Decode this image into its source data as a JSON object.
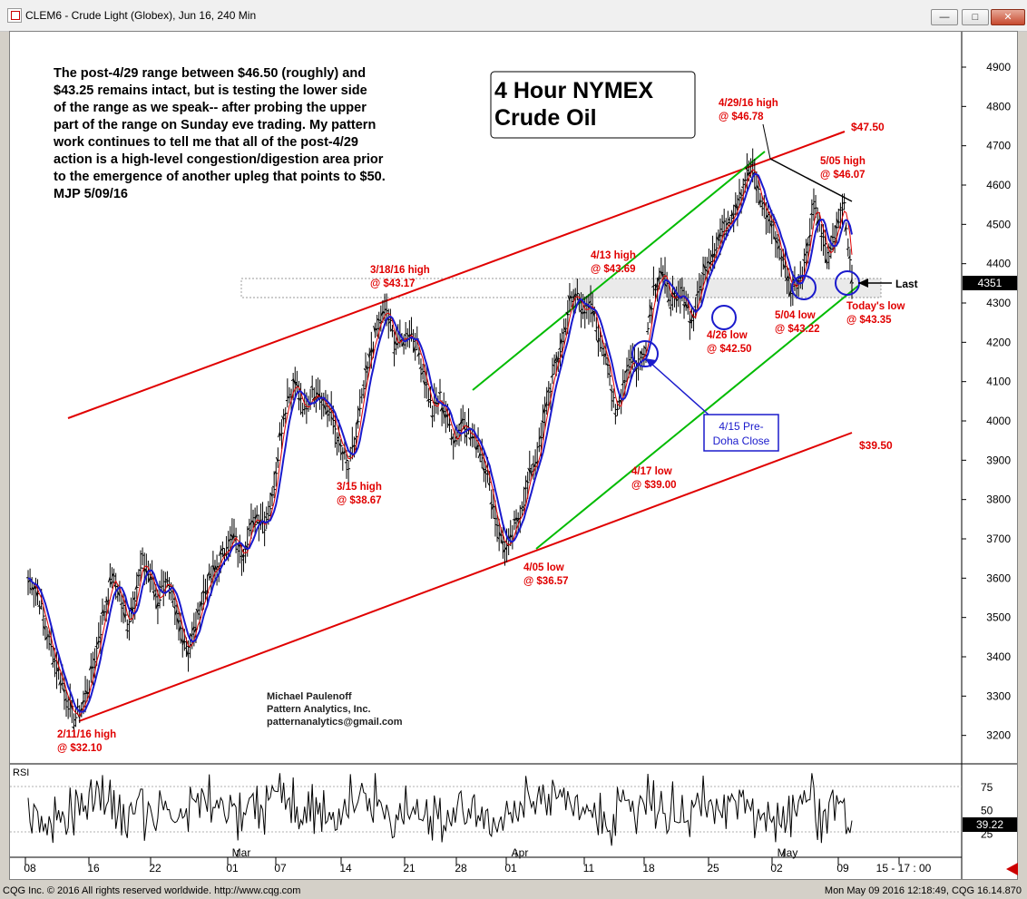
{
  "window": {
    "title": "CLEM6 - Crude Light (Globex), Jun 16, 240 Min",
    "minimize_label": "—",
    "maximize_label": "□",
    "close_label": "✕"
  },
  "status": {
    "left": "CQG Inc. © 2016 All rights reserved worldwide. http://www.cqg.com",
    "right": "Mon May 09 2016 12:18:49, CQG 16.14.870"
  },
  "chart_data": {
    "type": "line",
    "title": "4 Hour NYMEX Crude Oil",
    "title_lines": [
      "4 Hour NYMEX",
      "Crude Oil"
    ],
    "commentary": [
      "The post-4/29 range between $46.50 (roughly) and",
      "$43.25 remains intact, but is testing the lower side",
      "of the range as we speak-- after probing the upper",
      "part of the range on Sunday eve trading. My pattern",
      "work continues to tell me that all of the post-4/29",
      "action is a high-level congestion/digestion area prior",
      "to the emergence of another upleg that points to $50.",
      "MJP 5/09/16"
    ],
    "credits": [
      "Michael Paulenoff",
      "Pattern Analytics, Inc.",
      "patternanalytics@gmail.com"
    ],
    "y_ticks": [
      3200,
      3300,
      3400,
      3500,
      3600,
      3700,
      3800,
      3900,
      4000,
      4100,
      4200,
      4300,
      4400,
      4500,
      4600,
      4700,
      4800,
      4900
    ],
    "ylim": [
      3130,
      4990
    ],
    "last_price": "4351",
    "last_value": 4351,
    "last_label": "Last",
    "x_labels": [
      "08",
      "16",
      "22",
      "01",
      "07",
      "14",
      "21",
      "28",
      "01",
      "11",
      "18",
      "25",
      "02",
      "09",
      "15 - 17 : 00"
    ],
    "month_labels": [
      "Mar",
      "Apr",
      "May"
    ],
    "rsi": {
      "label": "RSI",
      "ticks": [
        75,
        50,
        25
      ],
      "value": "39.22",
      "current": 39.22
    },
    "price_series": [
      {
        "t": 0,
        "p": 3600
      },
      {
        "t": 1,
        "p": 3580
      },
      {
        "t": 2,
        "p": 3500
      },
      {
        "t": 3,
        "p": 3420
      },
      {
        "t": 4,
        "p": 3360
      },
      {
        "t": 5,
        "p": 3300
      },
      {
        "t": 6,
        "p": 3240
      },
      {
        "t": 7,
        "p": 3270
      },
      {
        "t": 8,
        "p": 3330
      },
      {
        "t": 9,
        "p": 3420
      },
      {
        "t": 10,
        "p": 3520
      },
      {
        "t": 11,
        "p": 3600
      },
      {
        "t": 12,
        "p": 3560
      },
      {
        "t": 13,
        "p": 3480
      },
      {
        "t": 14,
        "p": 3560
      },
      {
        "t": 15,
        "p": 3640
      },
      {
        "t": 16,
        "p": 3600
      },
      {
        "t": 17,
        "p": 3540
      },
      {
        "t": 18,
        "p": 3600
      },
      {
        "t": 19,
        "p": 3530
      },
      {
        "t": 20,
        "p": 3470
      },
      {
        "t": 21,
        "p": 3420
      },
      {
        "t": 22,
        "p": 3480
      },
      {
        "t": 23,
        "p": 3560
      },
      {
        "t": 24,
        "p": 3600
      },
      {
        "t": 25,
        "p": 3640
      },
      {
        "t": 26,
        "p": 3680
      },
      {
        "t": 27,
        "p": 3700
      },
      {
        "t": 28,
        "p": 3660
      },
      {
        "t": 29,
        "p": 3720
      },
      {
        "t": 30,
        "p": 3760
      },
      {
        "t": 31,
        "p": 3740
      },
      {
        "t": 32,
        "p": 3800
      },
      {
        "t": 33,
        "p": 3960
      },
      {
        "t": 34,
        "p": 4060
      },
      {
        "t": 35,
        "p": 4100
      },
      {
        "t": 36,
        "p": 4020
      },
      {
        "t": 37,
        "p": 4060
      },
      {
        "t": 38,
        "p": 4080
      },
      {
        "t": 39,
        "p": 4040
      },
      {
        "t": 40,
        "p": 4000
      },
      {
        "t": 41,
        "p": 3930
      },
      {
        "t": 42,
        "p": 3880
      },
      {
        "t": 43,
        "p": 3960
      },
      {
        "t": 44,
        "p": 4080
      },
      {
        "t": 45,
        "p": 4180
      },
      {
        "t": 46,
        "p": 4250
      },
      {
        "t": 47,
        "p": 4280
      },
      {
        "t": 48,
        "p": 4200
      },
      {
        "t": 49,
        "p": 4200
      },
      {
        "t": 50,
        "p": 4230
      },
      {
        "t": 51,
        "p": 4190
      },
      {
        "t": 52,
        "p": 4110
      },
      {
        "t": 53,
        "p": 4020
      },
      {
        "t": 54,
        "p": 4060
      },
      {
        "t": 55,
        "p": 4000
      },
      {
        "t": 56,
        "p": 3950
      },
      {
        "t": 57,
        "p": 4010
      },
      {
        "t": 58,
        "p": 3960
      },
      {
        "t": 59,
        "p": 3940
      },
      {
        "t": 60,
        "p": 3880
      },
      {
        "t": 61,
        "p": 3780
      },
      {
        "t": 62,
        "p": 3700
      },
      {
        "t": 63,
        "p": 3670
      },
      {
        "t": 64,
        "p": 3740
      },
      {
        "t": 65,
        "p": 3800
      },
      {
        "t": 66,
        "p": 3880
      },
      {
        "t": 67,
        "p": 3920
      },
      {
        "t": 68,
        "p": 4050
      },
      {
        "t": 69,
        "p": 4130
      },
      {
        "t": 70,
        "p": 4200
      },
      {
        "t": 71,
        "p": 4300
      },
      {
        "t": 72,
        "p": 4320
      },
      {
        "t": 73,
        "p": 4280
      },
      {
        "t": 74,
        "p": 4280
      },
      {
        "t": 75,
        "p": 4200
      },
      {
        "t": 76,
        "p": 4160
      },
      {
        "t": 77,
        "p": 4000
      },
      {
        "t": 78,
        "p": 4100
      },
      {
        "t": 79,
        "p": 4160
      },
      {
        "t": 80,
        "p": 4140
      },
      {
        "t": 81,
        "p": 4200
      },
      {
        "t": 82,
        "p": 4340
      },
      {
        "t": 83,
        "p": 4380
      },
      {
        "t": 84,
        "p": 4320
      },
      {
        "t": 85,
        "p": 4300
      },
      {
        "t": 86,
        "p": 4320
      },
      {
        "t": 87,
        "p": 4250
      },
      {
        "t": 88,
        "p": 4330
      },
      {
        "t": 89,
        "p": 4400
      },
      {
        "t": 90,
        "p": 4440
      },
      {
        "t": 91,
        "p": 4480
      },
      {
        "t": 92,
        "p": 4520
      },
      {
        "t": 93,
        "p": 4560
      },
      {
        "t": 94,
        "p": 4620
      },
      {
        "t": 95,
        "p": 4640
      },
      {
        "t": 96,
        "p": 4560
      },
      {
        "t": 97,
        "p": 4520
      },
      {
        "t": 98,
        "p": 4480
      },
      {
        "t": 99,
        "p": 4400
      },
      {
        "t": 100,
        "p": 4340
      },
      {
        "t": 101,
        "p": 4360
      },
      {
        "t": 102,
        "p": 4420
      },
      {
        "t": 103,
        "p": 4560
      },
      {
        "t": 104,
        "p": 4480
      },
      {
        "t": 105,
        "p": 4400
      },
      {
        "t": 106,
        "p": 4500
      },
      {
        "t": 107,
        "p": 4540
      },
      {
        "t": 108,
        "p": 4351
      }
    ],
    "annotations": [
      {
        "id": "feb11",
        "lines": [
          "2/11/16 high",
          "@ $32.10"
        ],
        "t": 6,
        "p": 3210
      },
      {
        "id": "mar15",
        "lines": [
          "3/15 high",
          "@ $38.67"
        ],
        "t": 41,
        "p": 3867
      },
      {
        "id": "mar18",
        "lines": [
          "3/18/16 high",
          "@ $43.17"
        ],
        "t": 46,
        "p": 4317
      },
      {
        "id": "apr05",
        "lines": [
          "4/05 low",
          "@ $36.57"
        ],
        "t": 63,
        "p": 3657
      },
      {
        "id": "apr13",
        "lines": [
          "4/13 high",
          "@ $43.69"
        ],
        "t": 72,
        "p": 4369
      },
      {
        "id": "apr17",
        "lines": [
          "4/17 low",
          "@ $39.00"
        ],
        "t": 77,
        "p": 3900
      },
      {
        "id": "apr26",
        "lines": [
          "4/26 low",
          "@ $42.50"
        ],
        "t": 87,
        "p": 4250
      },
      {
        "id": "apr29",
        "lines": [
          "4/29/16 high",
          "@ $46.78"
        ],
        "t": 95,
        "p": 4678
      },
      {
        "id": "may04",
        "lines": [
          "5/04 low",
          "@ $43.22"
        ],
        "t": 100,
        "p": 4322
      },
      {
        "id": "may05",
        "lines": [
          "5/05 high",
          "@ $46.07"
        ],
        "t": 103,
        "p": 4607
      },
      {
        "id": "today",
        "lines": [
          "Today's low",
          "@ $43.35"
        ],
        "t": 108,
        "p": 4335
      }
    ],
    "channel_labels": [
      "$47.50",
      "$39.50"
    ],
    "callout": [
      "4/15 Pre-",
      "Doha Close"
    ],
    "grid": false,
    "legend": "none"
  }
}
